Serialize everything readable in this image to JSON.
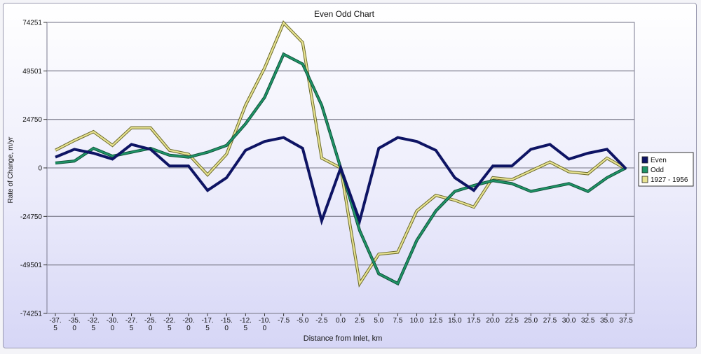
{
  "chart_data": {
    "type": "line",
    "title": "Even Odd Chart",
    "xlabel": "Distance from Inlet, km",
    "ylabel": "Rate of Change, m/yr",
    "x": [
      -37.5,
      -35.0,
      -32.5,
      -30.0,
      -27.5,
      -25.0,
      -22.5,
      -20.0,
      -17.5,
      -15.0,
      -12.5,
      -10.0,
      -7.5,
      -5.0,
      -2.5,
      0.0,
      2.5,
      5.0,
      7.5,
      10.0,
      12.5,
      15.0,
      17.5,
      20.0,
      22.5,
      25.0,
      27.5,
      30.0,
      32.5,
      35.0,
      37.5
    ],
    "x_tick_labels": [
      [
        "-37.",
        "5"
      ],
      [
        "-35.",
        "0"
      ],
      [
        "-32.",
        "5"
      ],
      [
        "-30.",
        "0"
      ],
      [
        "-27.",
        "5"
      ],
      [
        "-25.",
        "0"
      ],
      [
        "-22.",
        "5"
      ],
      [
        "-20.",
        "0"
      ],
      [
        "-17.",
        "5"
      ],
      [
        "-15.",
        "0"
      ],
      [
        "-12.",
        "5"
      ],
      [
        "-10.",
        "0"
      ],
      [
        "-7.5"
      ],
      [
        "-5.0"
      ],
      [
        "-2.5"
      ],
      [
        "0.0"
      ],
      [
        "2.5"
      ],
      [
        "5.0"
      ],
      [
        "7.5"
      ],
      [
        "10.0"
      ],
      [
        "12.5"
      ],
      [
        "15.0"
      ],
      [
        "17.5"
      ],
      [
        "20.0"
      ],
      [
        "22.5"
      ],
      [
        "25.0"
      ],
      [
        "27.5"
      ],
      [
        "30.0"
      ],
      [
        "32.5"
      ],
      [
        "35.0"
      ],
      [
        "37.5"
      ]
    ],
    "y_ticks": [
      -74251,
      -49501,
      -24750,
      0,
      24750,
      49501,
      74251
    ],
    "y_tick_labels": [
      "-74251",
      "-49501",
      "-24750",
      "0",
      "24750",
      "49501",
      "74251"
    ],
    "ylim": [
      -74251,
      74251
    ],
    "grid": "horizontal",
    "legend_position": "right",
    "series": [
      {
        "name": "Even",
        "color": "#0e1464",
        "values": [
          5500,
          9500,
          7500,
          4500,
          12000,
          9500,
          1000,
          1000,
          -11500,
          -5000,
          9000,
          13500,
          15500,
          10000,
          -27000,
          0,
          -27000,
          10000,
          15500,
          13500,
          9000,
          -5000,
          -11500,
          1000,
          1000,
          9500,
          12000,
          4500,
          7500,
          9500,
          -500
        ]
      },
      {
        "name": "Odd",
        "color": "#1f9467",
        "values": [
          2500,
          3500,
          10000,
          6000,
          8000,
          10000,
          6500,
          5500,
          8000,
          11500,
          22500,
          36000,
          58000,
          53000,
          32000,
          0,
          -32000,
          -54000,
          -59000,
          -37000,
          -22000,
          -12000,
          -9000,
          -6500,
          -8000,
          -12000,
          -10000,
          -8000,
          -12000,
          -5000,
          0
        ]
      },
      {
        "name": "1927 - 1956",
        "color": "#e8e391",
        "values": [
          9000,
          14000,
          18500,
          11500,
          20500,
          20500,
          9000,
          7000,
          -3500,
          7000,
          32000,
          51000,
          74000,
          64000,
          5000,
          0,
          -59000,
          -44000,
          -43000,
          -22000,
          -14000,
          -16500,
          -20000,
          -5000,
          -6000,
          -1500,
          3000,
          -2000,
          -3000,
          5000,
          -500
        ]
      }
    ]
  }
}
